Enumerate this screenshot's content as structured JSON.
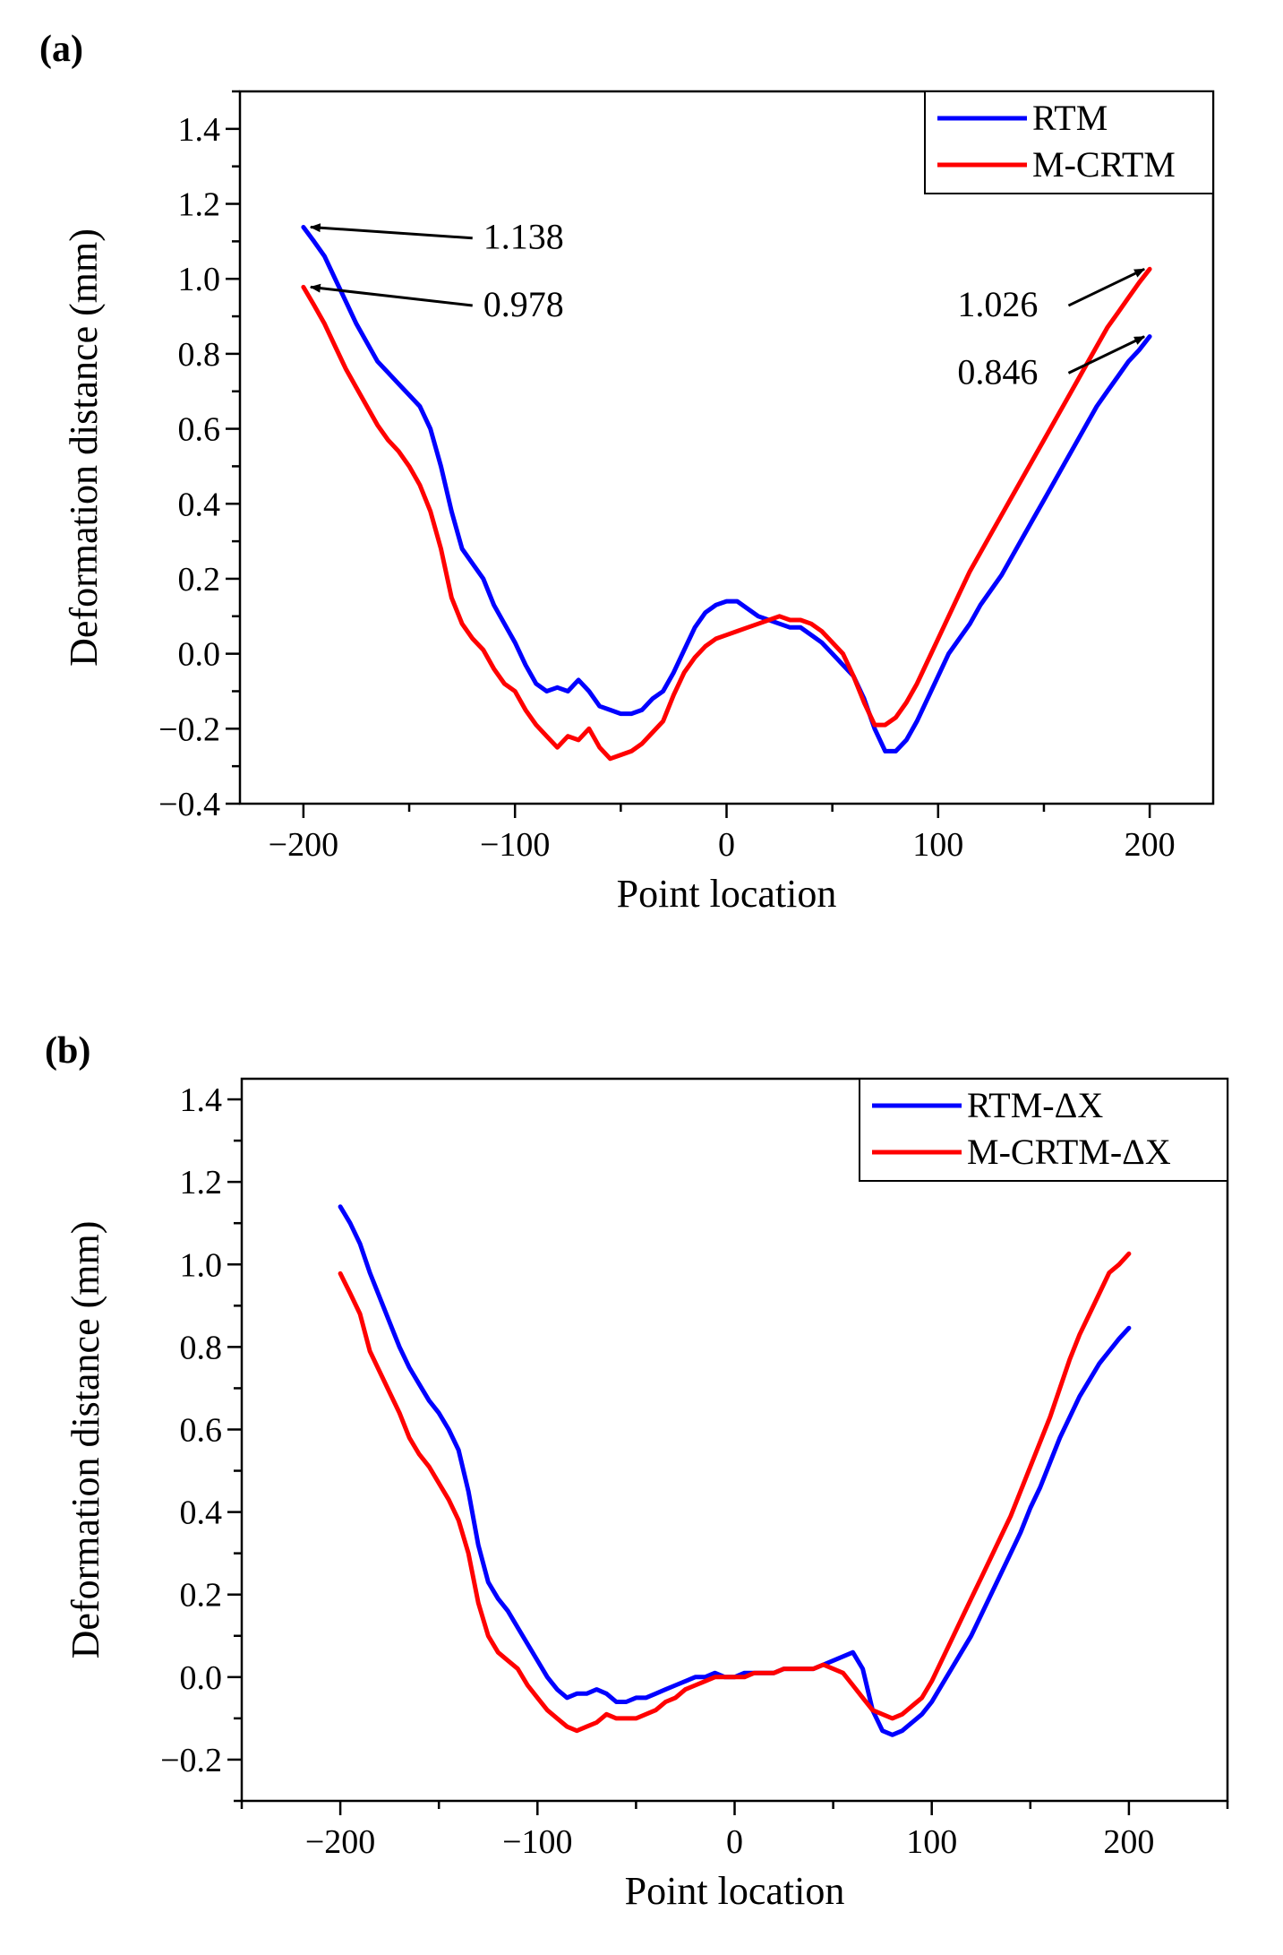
{
  "chart_data": [
    {
      "panel_label": "(a)",
      "type": "line",
      "xlabel": "Point location",
      "ylabel": "Deformation distance (mm)",
      "xlim": [
        -230,
        230
      ],
      "ylim": [
        -0.4,
        1.5
      ],
      "xticks": [
        -200,
        -100,
        0,
        100,
        200
      ],
      "xtick_labels": [
        "−200",
        "−100",
        "0",
        "100",
        "200"
      ],
      "yticks": [
        -0.4,
        -0.2,
        0.0,
        0.2,
        0.4,
        0.6,
        0.8,
        1.0,
        1.2,
        1.4
      ],
      "ytick_labels": [
        "−0.4",
        "−0.2",
        "0.0",
        "0.2",
        "0.4",
        "0.6",
        "0.8",
        "1.0",
        "1.2",
        "1.4"
      ],
      "legend_position": "top-right",
      "series": [
        {
          "name": "RTM",
          "color": "#0000ff",
          "x": [
            -200,
            -195,
            -190,
            -185,
            -180,
            -175,
            -170,
            -165,
            -160,
            -155,
            -150,
            -145,
            -140,
            -135,
            -130,
            -125,
            -120,
            -115,
            -110,
            -105,
            -100,
            -95,
            -90,
            -85,
            -80,
            -75,
            -70,
            -65,
            -60,
            -55,
            -50,
            -45,
            -40,
            -35,
            -30,
            -25,
            -20,
            -15,
            -10,
            -5,
            0,
            5,
            10,
            15,
            20,
            25,
            30,
            35,
            40,
            45,
            50,
            55,
            60,
            65,
            70,
            75,
            80,
            85,
            90,
            95,
            100,
            105,
            110,
            115,
            120,
            125,
            130,
            135,
            140,
            145,
            150,
            155,
            160,
            165,
            170,
            175,
            180,
            185,
            190,
            195,
            200
          ],
          "y": [
            1.138,
            1.1,
            1.06,
            1.0,
            0.94,
            0.88,
            0.83,
            0.78,
            0.75,
            0.72,
            0.69,
            0.66,
            0.6,
            0.5,
            0.38,
            0.28,
            0.24,
            0.2,
            0.13,
            0.08,
            0.03,
            -0.03,
            -0.08,
            -0.1,
            -0.09,
            -0.1,
            -0.07,
            -0.1,
            -0.14,
            -0.15,
            -0.16,
            -0.16,
            -0.15,
            -0.12,
            -0.1,
            -0.05,
            0.01,
            0.07,
            0.11,
            0.13,
            0.14,
            0.14,
            0.12,
            0.1,
            0.09,
            0.08,
            0.07,
            0.07,
            0.05,
            0.03,
            0.0,
            -0.03,
            -0.06,
            -0.12,
            -0.2,
            -0.26,
            -0.26,
            -0.23,
            -0.18,
            -0.12,
            -0.06,
            0.0,
            0.04,
            0.08,
            0.13,
            0.17,
            0.21,
            0.26,
            0.31,
            0.36,
            0.41,
            0.46,
            0.51,
            0.56,
            0.61,
            0.66,
            0.7,
            0.74,
            0.78,
            0.81,
            0.846
          ]
        },
        {
          "name": "M-CRTM",
          "color": "#ff0000",
          "x": [
            -200,
            -195,
            -190,
            -185,
            -180,
            -175,
            -170,
            -165,
            -160,
            -155,
            -150,
            -145,
            -140,
            -135,
            -130,
            -125,
            -120,
            -115,
            -110,
            -105,
            -100,
            -95,
            -90,
            -85,
            -80,
            -75,
            -70,
            -65,
            -60,
            -55,
            -50,
            -45,
            -40,
            -35,
            -30,
            -25,
            -20,
            -15,
            -10,
            -5,
            0,
            5,
            10,
            15,
            20,
            25,
            30,
            35,
            40,
            45,
            50,
            55,
            60,
            65,
            70,
            75,
            80,
            85,
            90,
            95,
            100,
            105,
            110,
            115,
            120,
            125,
            130,
            135,
            140,
            145,
            150,
            155,
            160,
            165,
            170,
            175,
            180,
            185,
            190,
            195,
            200
          ],
          "y": [
            0.978,
            0.93,
            0.88,
            0.82,
            0.76,
            0.71,
            0.66,
            0.61,
            0.57,
            0.54,
            0.5,
            0.45,
            0.38,
            0.28,
            0.15,
            0.08,
            0.04,
            0.01,
            -0.04,
            -0.08,
            -0.1,
            -0.15,
            -0.19,
            -0.22,
            -0.25,
            -0.22,
            -0.23,
            -0.2,
            -0.25,
            -0.28,
            -0.27,
            -0.26,
            -0.24,
            -0.21,
            -0.18,
            -0.11,
            -0.05,
            -0.01,
            0.02,
            0.04,
            0.05,
            0.06,
            0.07,
            0.08,
            0.09,
            0.1,
            0.09,
            0.09,
            0.08,
            0.06,
            0.03,
            0.0,
            -0.06,
            -0.13,
            -0.19,
            -0.19,
            -0.17,
            -0.13,
            -0.08,
            -0.02,
            0.04,
            0.1,
            0.16,
            0.22,
            0.27,
            0.32,
            0.37,
            0.42,
            0.47,
            0.52,
            0.57,
            0.62,
            0.67,
            0.72,
            0.77,
            0.82,
            0.87,
            0.91,
            0.95,
            0.99,
            1.026
          ]
        }
      ],
      "annotations": [
        {
          "text": "1.138",
          "x": -200,
          "y": 1.138,
          "text_x": -115,
          "text_y": 1.08
        },
        {
          "text": "0.978",
          "x": -200,
          "y": 0.978,
          "text_x": -115,
          "text_y": 0.9
        },
        {
          "text": "1.026",
          "x": 200,
          "y": 1.026,
          "text_x": 110,
          "text_y": 0.9
        },
        {
          "text": "0.846",
          "x": 200,
          "y": 0.846,
          "text_x": 110,
          "text_y": 0.72
        }
      ]
    },
    {
      "panel_label": "(b)",
      "type": "line",
      "xlabel": "Point location",
      "ylabel": "Deformation distance (mm)",
      "xlim": [
        -250,
        250
      ],
      "ylim": [
        -0.3,
        1.45
      ],
      "xticks": [
        -200,
        -100,
        0,
        100,
        200
      ],
      "xtick_labels": [
        "−200",
        "−100",
        "0",
        "100",
        "200"
      ],
      "yticks": [
        -0.2,
        0.0,
        0.2,
        0.4,
        0.6,
        0.8,
        1.0,
        1.2,
        1.4
      ],
      "ytick_labels": [
        "−0.2",
        "0.0",
        "0.2",
        "0.4",
        "0.6",
        "0.8",
        "1.0",
        "1.2",
        "1.4"
      ],
      "legend_position": "top-right",
      "series": [
        {
          "name": "RTM-ΔX",
          "color": "#0000ff",
          "x": [
            -200,
            -195,
            -190,
            -185,
            -180,
            -175,
            -170,
            -165,
            -160,
            -155,
            -150,
            -145,
            -140,
            -135,
            -130,
            -125,
            -120,
            -115,
            -110,
            -105,
            -100,
            -95,
            -90,
            -85,
            -80,
            -75,
            -70,
            -65,
            -60,
            -55,
            -50,
            -45,
            -40,
            -35,
            -30,
            -25,
            -20,
            -15,
            -10,
            -5,
            0,
            5,
            10,
            15,
            20,
            25,
            30,
            35,
            40,
            45,
            50,
            55,
            60,
            65,
            70,
            75,
            80,
            85,
            90,
            95,
            100,
            105,
            110,
            115,
            120,
            125,
            130,
            135,
            140,
            145,
            150,
            155,
            160,
            165,
            170,
            175,
            180,
            185,
            190,
            195,
            200
          ],
          "y": [
            1.14,
            1.1,
            1.05,
            0.98,
            0.92,
            0.86,
            0.8,
            0.75,
            0.71,
            0.67,
            0.64,
            0.6,
            0.55,
            0.45,
            0.32,
            0.23,
            0.19,
            0.16,
            0.12,
            0.08,
            0.04,
            0.0,
            -0.03,
            -0.05,
            -0.04,
            -0.04,
            -0.03,
            -0.04,
            -0.06,
            -0.06,
            -0.05,
            -0.05,
            -0.04,
            -0.03,
            -0.02,
            -0.01,
            0.0,
            0.0,
            0.01,
            0.0,
            0.0,
            0.01,
            0.01,
            0.01,
            0.01,
            0.02,
            0.02,
            0.02,
            0.02,
            0.03,
            0.04,
            0.05,
            0.06,
            0.02,
            -0.08,
            -0.13,
            -0.14,
            -0.13,
            -0.11,
            -0.09,
            -0.06,
            -0.02,
            0.02,
            0.06,
            0.1,
            0.15,
            0.2,
            0.25,
            0.3,
            0.35,
            0.41,
            0.46,
            0.52,
            0.58,
            0.63,
            0.68,
            0.72,
            0.76,
            0.79,
            0.82,
            0.846
          ]
        },
        {
          "name": "M-CRTM-ΔX",
          "color": "#ff0000",
          "x": [
            -200,
            -195,
            -190,
            -185,
            -180,
            -175,
            -170,
            -165,
            -160,
            -155,
            -150,
            -145,
            -140,
            -135,
            -130,
            -125,
            -120,
            -115,
            -110,
            -105,
            -100,
            -95,
            -90,
            -85,
            -80,
            -75,
            -70,
            -65,
            -60,
            -55,
            -50,
            -45,
            -40,
            -35,
            -30,
            -25,
            -20,
            -15,
            -10,
            -5,
            0,
            5,
            10,
            15,
            20,
            25,
            30,
            35,
            40,
            45,
            50,
            55,
            60,
            65,
            70,
            75,
            80,
            85,
            90,
            95,
            100,
            105,
            110,
            115,
            120,
            125,
            130,
            135,
            140,
            145,
            150,
            155,
            160,
            165,
            170,
            175,
            180,
            185,
            190,
            195,
            200
          ],
          "y": [
            0.978,
            0.93,
            0.88,
            0.79,
            0.74,
            0.69,
            0.64,
            0.58,
            0.54,
            0.51,
            0.47,
            0.43,
            0.38,
            0.3,
            0.18,
            0.1,
            0.06,
            0.04,
            0.02,
            -0.02,
            -0.05,
            -0.08,
            -0.1,
            -0.12,
            -0.13,
            -0.12,
            -0.11,
            -0.09,
            -0.1,
            -0.1,
            -0.1,
            -0.09,
            -0.08,
            -0.06,
            -0.05,
            -0.03,
            -0.02,
            -0.01,
            0.0,
            0.0,
            0.0,
            0.0,
            0.01,
            0.01,
            0.01,
            0.02,
            0.02,
            0.02,
            0.02,
            0.03,
            0.02,
            0.01,
            -0.02,
            -0.05,
            -0.08,
            -0.09,
            -0.1,
            -0.09,
            -0.07,
            -0.05,
            -0.01,
            0.04,
            0.09,
            0.14,
            0.19,
            0.24,
            0.29,
            0.34,
            0.39,
            0.45,
            0.51,
            0.57,
            0.63,
            0.7,
            0.77,
            0.83,
            0.88,
            0.93,
            0.98,
            1.0,
            1.026
          ]
        }
      ],
      "annotations": []
    }
  ]
}
